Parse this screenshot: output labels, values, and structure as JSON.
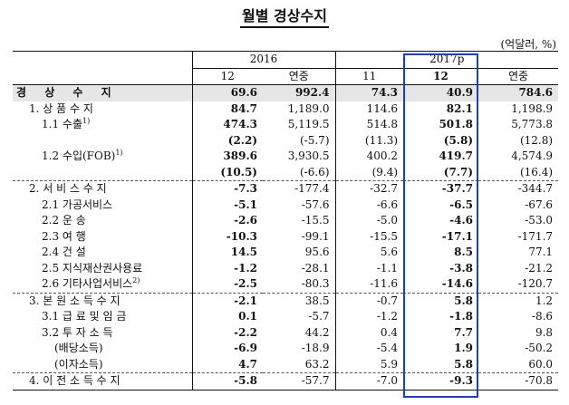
{
  "title": "월별 경상수지",
  "unit": "(억달러, %)",
  "header": {
    "year1": "2016",
    "year2": "2017p",
    "cols": [
      "12",
      "연중",
      "11",
      "12",
      "연중"
    ]
  },
  "rows": [
    {
      "label": "경 상 수 지",
      "vals": [
        "69.6",
        "992.4",
        "74.3",
        "40.9",
        "784.6"
      ]
    },
    {
      "label": "1. 상 품 수 지",
      "vals": [
        "84.7",
        "1,189.0",
        "114.6",
        "82.1",
        "1,198.9"
      ]
    },
    {
      "label": "1.1  수출",
      "sup": "1)",
      "vals": [
        "474.3",
        "5,119.5",
        "514.8",
        "501.8",
        "5,773.8"
      ]
    },
    {
      "label": "",
      "vals": [
        "(2.2)",
        "(-5.7)",
        "(11.3)",
        "(5.8)",
        "(12.8)"
      ]
    },
    {
      "label": "1.2  수입(FOB)",
      "sup": "1)",
      "vals": [
        "389.6",
        "3,930.5",
        "400.2",
        "419.7",
        "4,574.9"
      ]
    },
    {
      "label": "",
      "vals": [
        "(10.5)",
        "(-6.6)",
        "(9.4)",
        "(7.7)",
        "(16.4)"
      ]
    },
    {
      "label": "2. 서 비 스 수 지",
      "vals": [
        "-7.3",
        "-177.4",
        "-32.7",
        "-37.7",
        "-344.7"
      ]
    },
    {
      "label": "2.1  가공서비스",
      "vals": [
        "-5.1",
        "-57.6",
        "-6.6",
        "-6.5",
        "-67.6"
      ]
    },
    {
      "label": "2.2  운      송",
      "vals": [
        "-2.6",
        "-15.5",
        "-5.0",
        "-4.6",
        "-53.0"
      ]
    },
    {
      "label": "2.3  여      행",
      "vals": [
        "-10.3",
        "-99.1",
        "-15.5",
        "-17.1",
        "-171.7"
      ]
    },
    {
      "label": "2.4  건      설",
      "vals": [
        "14.5",
        "95.6",
        "5.6",
        "8.5",
        "77.1"
      ]
    },
    {
      "label": "2.5  지식재산권사용료",
      "vals": [
        "-1.2",
        "-28.1",
        "-1.1",
        "-3.8",
        "-21.2"
      ]
    },
    {
      "label": "2.6  기타사업서비스",
      "sup": "2)",
      "vals": [
        "-2.5",
        "-80.3",
        "-11.6",
        "-14.6",
        "-120.7"
      ]
    },
    {
      "label": "3. 본 원 소 득 수 지",
      "vals": [
        "-2.1",
        "38.5",
        "-0.7",
        "5.8",
        "1.2"
      ]
    },
    {
      "label": "3.1  급 료 및 임 금",
      "vals": [
        "0.1",
        "-5.7",
        "-1.2",
        "-1.8",
        "-8.6"
      ]
    },
    {
      "label": "3.2  투  자  소  득",
      "vals": [
        "-2.2",
        "44.2",
        "0.4",
        "7.7",
        "9.8"
      ]
    },
    {
      "label": "(배당소득)",
      "vals": [
        "-6.9",
        "-18.9",
        "-5.4",
        "1.9",
        "-50.2"
      ]
    },
    {
      "label": "(이자소득)",
      "vals": [
        "4.7",
        "63.2",
        "5.9",
        "5.8",
        "60.0"
      ]
    },
    {
      "label": "4. 이 전 소 득 수 지",
      "vals": [
        "-5.8",
        "-57.7",
        "-7.0",
        "-9.3",
        "-70.8"
      ]
    }
  ]
}
